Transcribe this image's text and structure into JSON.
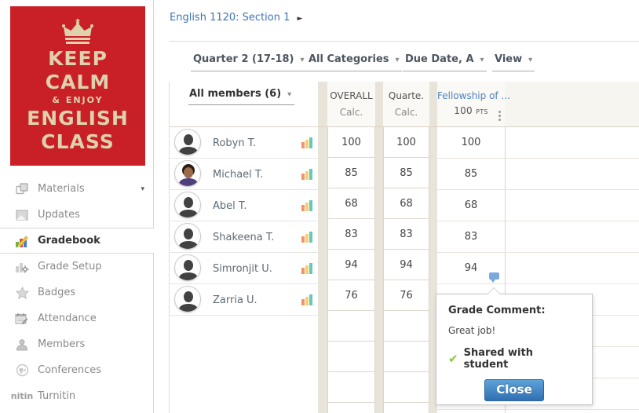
{
  "poster": {
    "bg_color": "#c92028",
    "text_color": "#ded2ac",
    "lines": [
      "KEEP",
      "CALM",
      "& ENJOY",
      "ENGLISH",
      "CLASS"
    ]
  },
  "sidebar": {
    "items": [
      {
        "label": "Materials",
        "icon": "materials-icon",
        "selected": false,
        "has_caret": true
      },
      {
        "label": "Updates",
        "icon": "updates-icon",
        "selected": false,
        "has_caret": false
      },
      {
        "label": "Gradebook",
        "icon": "gradebook-icon",
        "selected": true,
        "has_caret": false
      },
      {
        "label": "Grade Setup",
        "icon": "grade-setup-icon",
        "selected": false,
        "has_caret": false
      },
      {
        "label": "Badges",
        "icon": "badges-icon",
        "selected": false,
        "has_caret": false
      },
      {
        "label": "Attendance",
        "icon": "attendance-icon",
        "selected": false,
        "has_caret": false
      },
      {
        "label": "Members",
        "icon": "members-icon",
        "selected": false,
        "has_caret": false
      },
      {
        "label": "Conferences",
        "icon": "conferences-icon",
        "selected": false,
        "has_caret": false
      },
      {
        "label": "Turnitin",
        "icon": "turnitin-icon",
        "selected": false,
        "has_caret": false
      }
    ]
  },
  "header": {
    "breadcrumb": "English 1120: Section 1",
    "breadcrumb_arrow": "►"
  },
  "toolbar": {
    "dropdowns": [
      {
        "label": "Quarter 2 (17-18)"
      },
      {
        "label": "All Categories"
      },
      {
        "label": "Due Date, A"
      },
      {
        "label": "View"
      }
    ]
  },
  "gradebook": {
    "members_dropdown": {
      "label": "All members (6)"
    },
    "columns": {
      "overall": {
        "title": "OVERALL",
        "subtitle": "Calc."
      },
      "quarter": {
        "title": "Quarte.",
        "subtitle": "Calc."
      },
      "assignment": {
        "title": "Fellowship of ...",
        "subtitle": "100 pts",
        "link_color": "#4d82c2"
      }
    },
    "rows": [
      {
        "name": "Robyn T.",
        "avatar": "silhouette",
        "overall": "100",
        "quarter": "100",
        "assignment": "100",
        "has_comment": false
      },
      {
        "name": "Michael T.",
        "avatar": "portrait",
        "overall": "85",
        "quarter": "85",
        "assignment": "85",
        "has_comment": false
      },
      {
        "name": "Abel T.",
        "avatar": "silhouette",
        "overall": "68",
        "quarter": "68",
        "assignment": "68",
        "has_comment": false
      },
      {
        "name": "Shakeena T.",
        "avatar": "silhouette",
        "overall": "83",
        "quarter": "83",
        "assignment": "83",
        "has_comment": false
      },
      {
        "name": "Simronjit U.",
        "avatar": "silhouette",
        "overall": "94",
        "quarter": "94",
        "assignment": "94",
        "has_comment": true
      },
      {
        "name": "Zarria U.",
        "avatar": "silhouette",
        "overall": "76",
        "quarter": "76",
        "assignment": "",
        "has_comment": false
      }
    ],
    "comment_bubble_color": "#7ca9db"
  },
  "comment_popup": {
    "title": "Grade Comment:",
    "comment": "Great job!",
    "shared_label": "Shared with student",
    "check_color": "#8bc53f",
    "close_button": {
      "label": "Close",
      "gradient_top": "#5da2d9",
      "gradient_bottom": "#316fb1"
    }
  }
}
